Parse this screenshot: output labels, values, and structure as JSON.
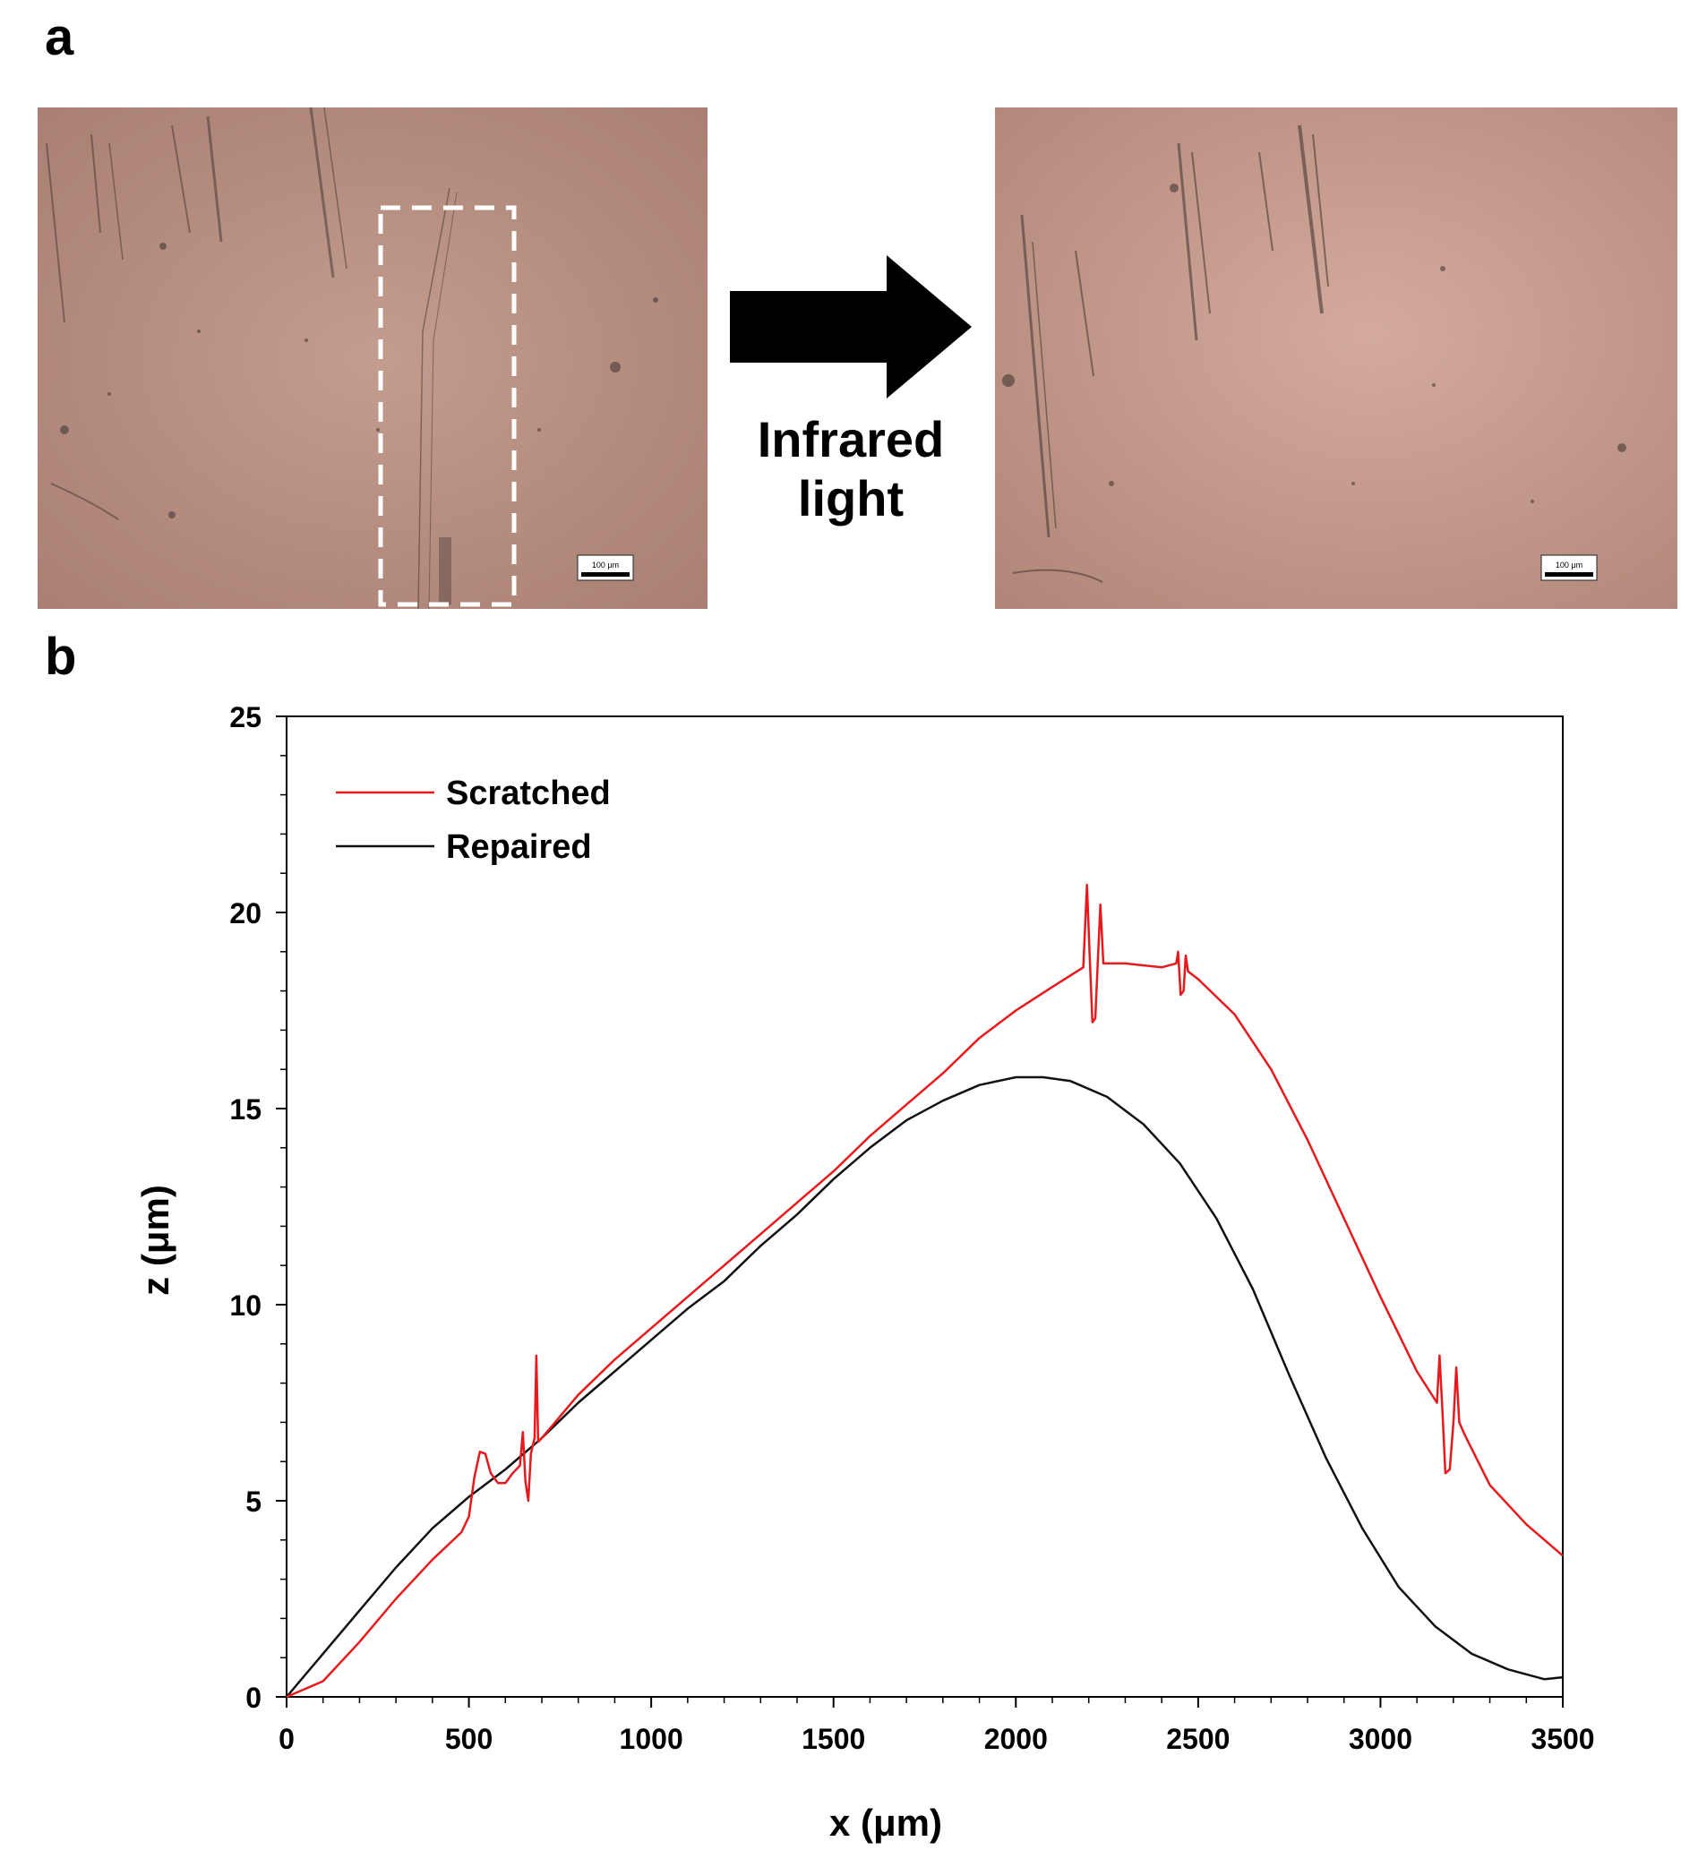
{
  "panels": {
    "a_label": "a",
    "b_label": "b"
  },
  "micrographs": {
    "before_scale_bar": "100 μm",
    "after_scale_bar": "100 μm",
    "stimulus_label": "Infrared light"
  },
  "colors": {
    "scratched": "#e8191c",
    "repaired": "#111111",
    "micrograph_tint": "#c89888"
  },
  "chart_data": {
    "type": "line",
    "xlabel": "x (μm)",
    "ylabel": "z (μm)",
    "xlim": [
      0,
      3500
    ],
    "ylim": [
      0,
      25
    ],
    "xticks": [
      0,
      500,
      1000,
      1500,
      2000,
      2500,
      3000,
      3500
    ],
    "yticks": [
      0,
      5,
      10,
      15,
      20,
      25
    ],
    "grid": false,
    "legend_position": "top-left",
    "series": [
      {
        "name": "Scratched",
        "color": "#e8191c",
        "points": [
          [
            0,
            0
          ],
          [
            100,
            0.4
          ],
          [
            200,
            1.4
          ],
          [
            300,
            2.5
          ],
          [
            400,
            3.5
          ],
          [
            480,
            4.2
          ],
          [
            500,
            4.6
          ],
          [
            515,
            5.6
          ],
          [
            530,
            6.25
          ],
          [
            545,
            6.2
          ],
          [
            560,
            5.7
          ],
          [
            580,
            5.45
          ],
          [
            600,
            5.45
          ],
          [
            620,
            5.7
          ],
          [
            640,
            5.9
          ],
          [
            648,
            6.75
          ],
          [
            655,
            5.5
          ],
          [
            663,
            5.0
          ],
          [
            670,
            6.2
          ],
          [
            680,
            6.6
          ],
          [
            685,
            8.7
          ],
          [
            690,
            6.5
          ],
          [
            700,
            6.6
          ],
          [
            800,
            7.7
          ],
          [
            900,
            8.6
          ],
          [
            1000,
            9.4
          ],
          [
            1100,
            10.2
          ],
          [
            1200,
            11.0
          ],
          [
            1300,
            11.8
          ],
          [
            1400,
            12.6
          ],
          [
            1500,
            13.4
          ],
          [
            1600,
            14.3
          ],
          [
            1700,
            15.1
          ],
          [
            1800,
            15.9
          ],
          [
            1900,
            16.8
          ],
          [
            2000,
            17.5
          ],
          [
            2100,
            18.1
          ],
          [
            2185,
            18.6
          ],
          [
            2195,
            20.7
          ],
          [
            2203,
            18.8
          ],
          [
            2210,
            17.2
          ],
          [
            2218,
            17.3
          ],
          [
            2225,
            18.8
          ],
          [
            2232,
            20.2
          ],
          [
            2240,
            18.7
          ],
          [
            2300,
            18.7
          ],
          [
            2400,
            18.6
          ],
          [
            2440,
            18.7
          ],
          [
            2445,
            19.0
          ],
          [
            2452,
            17.9
          ],
          [
            2460,
            18.0
          ],
          [
            2466,
            18.9
          ],
          [
            2472,
            18.5
          ],
          [
            2500,
            18.3
          ],
          [
            2600,
            17.4
          ],
          [
            2700,
            16.0
          ],
          [
            2800,
            14.2
          ],
          [
            2900,
            12.2
          ],
          [
            3000,
            10.2
          ],
          [
            3100,
            8.3
          ],
          [
            3155,
            7.5
          ],
          [
            3162,
            8.7
          ],
          [
            3170,
            7.3
          ],
          [
            3178,
            5.7
          ],
          [
            3190,
            5.8
          ],
          [
            3200,
            7.0
          ],
          [
            3208,
            8.4
          ],
          [
            3216,
            7.0
          ],
          [
            3230,
            6.7
          ],
          [
            3300,
            5.4
          ],
          [
            3400,
            4.4
          ],
          [
            3500,
            3.6
          ]
        ]
      },
      {
        "name": "Repaired",
        "color": "#111111",
        "points": [
          [
            0,
            0
          ],
          [
            100,
            1.1
          ],
          [
            200,
            2.2
          ],
          [
            300,
            3.3
          ],
          [
            400,
            4.3
          ],
          [
            500,
            5.1
          ],
          [
            600,
            5.8
          ],
          [
            700,
            6.6
          ],
          [
            800,
            7.5
          ],
          [
            900,
            8.3
          ],
          [
            1000,
            9.1
          ],
          [
            1100,
            9.9
          ],
          [
            1200,
            10.6
          ],
          [
            1300,
            11.5
          ],
          [
            1400,
            12.3
          ],
          [
            1500,
            13.2
          ],
          [
            1600,
            14.0
          ],
          [
            1700,
            14.7
          ],
          [
            1800,
            15.2
          ],
          [
            1900,
            15.6
          ],
          [
            2000,
            15.8
          ],
          [
            2075,
            15.8
          ],
          [
            2150,
            15.7
          ],
          [
            2250,
            15.3
          ],
          [
            2350,
            14.6
          ],
          [
            2450,
            13.6
          ],
          [
            2550,
            12.2
          ],
          [
            2650,
            10.4
          ],
          [
            2750,
            8.2
          ],
          [
            2850,
            6.1
          ],
          [
            2950,
            4.3
          ],
          [
            3050,
            2.8
          ],
          [
            3150,
            1.8
          ],
          [
            3250,
            1.1
          ],
          [
            3350,
            0.7
          ],
          [
            3450,
            0.45
          ],
          [
            3500,
            0.5
          ]
        ]
      }
    ]
  }
}
